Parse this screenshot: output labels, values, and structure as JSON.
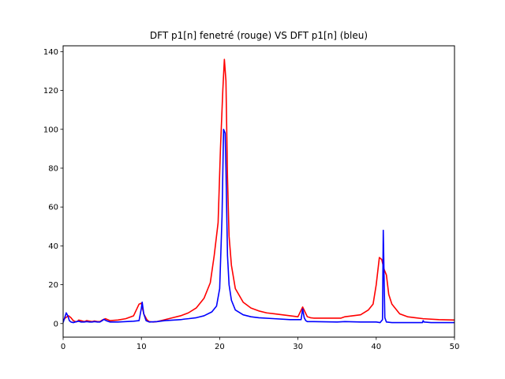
{
  "chart_data": {
    "type": "line",
    "title": "DFT p1[n] fenetré (rouge) VS DFT p1[n] (bleu)",
    "xlabel": "",
    "ylabel": "",
    "xlim": [
      0,
      50
    ],
    "ylim": [
      -7,
      143
    ],
    "xticks": [
      0,
      10,
      20,
      30,
      40,
      50
    ],
    "yticks": [
      0,
      20,
      40,
      60,
      80,
      100,
      120,
      140
    ],
    "grid": false,
    "series": [
      {
        "color": "#ff0000",
        "x": [
          0,
          0.3,
          0.7,
          1.0,
          1.3,
          1.7,
          2.0,
          2.3,
          2.7,
          3.0,
          3.4,
          3.7,
          4.0,
          4.4,
          4.7,
          5.0,
          5.4,
          6.0,
          7.0,
          8.0,
          9.0,
          9.7,
          10.0,
          10.3,
          10.7,
          11.0,
          11.5,
          12.0,
          13.0,
          14.0,
          15.0,
          16.0,
          17.0,
          18.0,
          18.8,
          19.3,
          19.8,
          20.1,
          20.4,
          20.6,
          20.8,
          21.0,
          21.2,
          21.5,
          22.0,
          23.0,
          24.0,
          25.0,
          26.0,
          27.0,
          28.0,
          29.0,
          30.0,
          30.3,
          30.6,
          30.9,
          31.2,
          31.6,
          32.0,
          34.0,
          35.5,
          36.0,
          38.0,
          39.0,
          39.6,
          40.0,
          40.4,
          40.7,
          41.0,
          41.3,
          41.6,
          42.0,
          43.0,
          44.0,
          45.0,
          46.0,
          48.0,
          50.0
        ],
        "y": [
          1.5,
          3.0,
          4.0,
          3.0,
          1.5,
          0.8,
          1.8,
          1.5,
          1.0,
          1.5,
          1.2,
          1.0,
          1.3,
          1.0,
          1.0,
          1.8,
          2.5,
          1.5,
          1.8,
          2.5,
          4.0,
          10.0,
          10.5,
          5.0,
          2.0,
          1.0,
          0.8,
          1.0,
          2.0,
          3.0,
          4.0,
          5.5,
          8.0,
          13.0,
          21.0,
          35.0,
          52.0,
          90.0,
          120.0,
          136.0,
          125.0,
          75.0,
          45.0,
          30.0,
          18.0,
          11.0,
          8.0,
          6.5,
          5.5,
          5.0,
          4.5,
          4.0,
          3.5,
          6.0,
          8.5,
          6.0,
          3.5,
          3.0,
          2.8,
          2.8,
          2.8,
          3.5,
          4.5,
          7.0,
          10.0,
          20.0,
          34.0,
          33.0,
          28.0,
          25.0,
          15.0,
          10.0,
          5.0,
          3.5,
          3.0,
          2.5,
          2.0,
          1.8
        ]
      },
      {
        "color": "#0000ff",
        "x": [
          0,
          0.2,
          0.4,
          0.6,
          0.8,
          1.0,
          1.3,
          1.7,
          2.0,
          2.3,
          2.7,
          3.0,
          3.4,
          3.7,
          4.0,
          4.4,
          4.7,
          5.0,
          5.2,
          5.5,
          6.0,
          7.0,
          8.0,
          9.0,
          9.7,
          10.0,
          10.1,
          10.3,
          10.6,
          11.0,
          12.0,
          13.0,
          15.0,
          15.5,
          16.0,
          17.0,
          18.0,
          19.0,
          19.6,
          20.0,
          20.3,
          20.5,
          20.7,
          20.8,
          21.0,
          21.2,
          21.5,
          22.0,
          23.0,
          24.0,
          25.0,
          27.0,
          29.0,
          30.4,
          30.6,
          30.8,
          31.0,
          31.2,
          32.0,
          35.0,
          36.0,
          38.0,
          40.0,
          40.5,
          40.8,
          40.9,
          41.0,
          41.1,
          41.3,
          42.0,
          44.0,
          45.9,
          46.0,
          46.1,
          47.0,
          50.0
        ],
        "y": [
          0.5,
          3.0,
          5.5,
          4.0,
          1.5,
          0.8,
          0.5,
          1.0,
          1.2,
          0.8,
          0.8,
          1.0,
          0.8,
          0.8,
          1.0,
          0.8,
          0.8,
          1.5,
          2.2,
          1.5,
          0.8,
          0.8,
          1.0,
          1.2,
          1.5,
          8.0,
          11.0,
          5.0,
          1.5,
          0.8,
          1.0,
          1.5,
          2.0,
          2.3,
          2.5,
          3.0,
          4.0,
          6.0,
          9.0,
          18.0,
          55.0,
          100.0,
          98.0,
          80.0,
          35.0,
          20.0,
          12.0,
          7.0,
          4.5,
          3.5,
          3.0,
          2.5,
          2.0,
          2.0,
          7.5,
          3.0,
          1.5,
          1.0,
          1.0,
          0.8,
          1.0,
          0.8,
          0.8,
          0.5,
          2.0,
          48.0,
          25.0,
          3.0,
          0.8,
          0.5,
          0.5,
          0.5,
          1.5,
          0.8,
          0.5,
          0.5
        ]
      }
    ]
  }
}
